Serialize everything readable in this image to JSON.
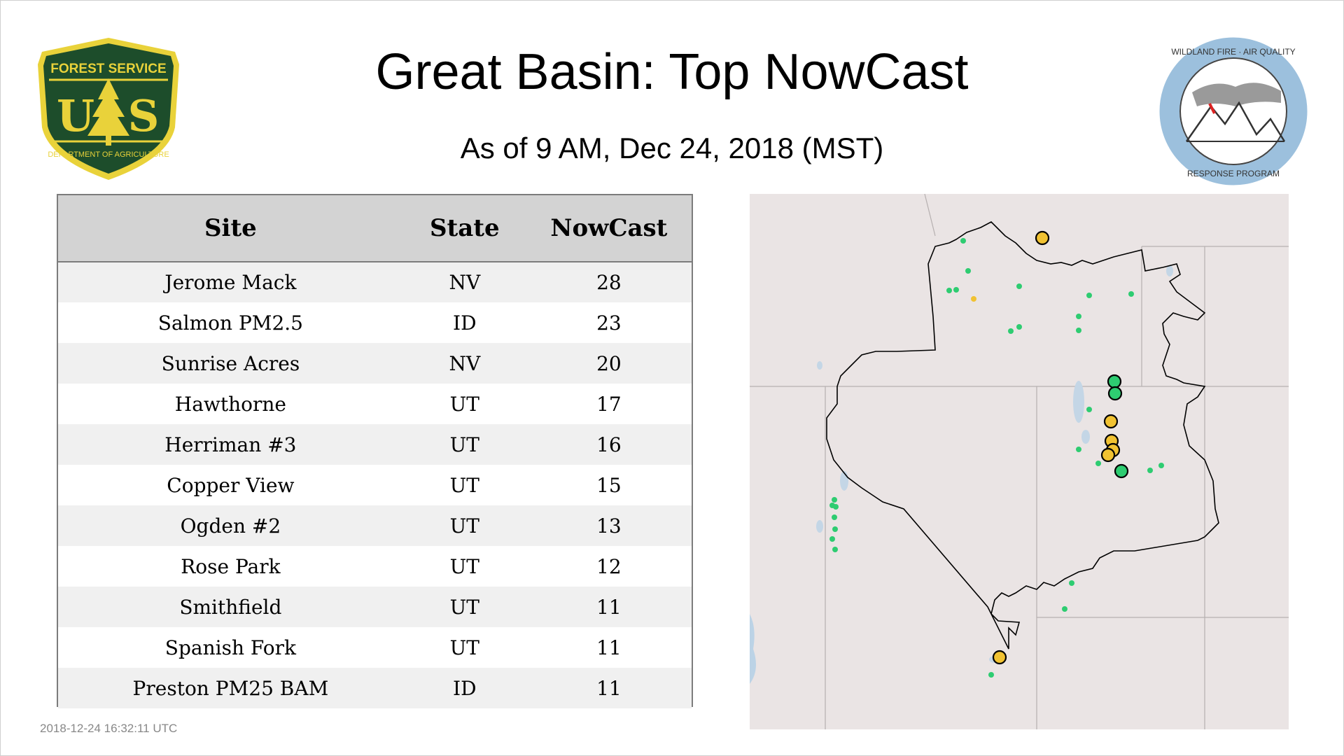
{
  "title": "Great Basin: Top NowCast",
  "subtitle": "As of  9 AM, Dec 24, 2018 (MST)",
  "timestamp": "2018-12-24 16:32:11 UTC",
  "logos": {
    "usfs": {
      "top_text": "FOREST SERVICE",
      "letters_left": "U",
      "letters_right": "S",
      "bottom_text": "DEPARTMENT OF AGRICULTURE",
      "icon": "usfs-shield-icon"
    },
    "wfa": {
      "top_text": "WILDLAND FIRE · AIR QUALITY",
      "bottom_text": "RESPONSE PROGRAM",
      "icon": "mountain-smoke-icon"
    }
  },
  "table": {
    "headers": {
      "site": "Site",
      "state": "State",
      "nowcast": "NowCast"
    },
    "rows": [
      {
        "site": "Jerome Mack",
        "state": "NV",
        "nowcast": "28"
      },
      {
        "site": "Salmon PM2.5",
        "state": "ID",
        "nowcast": "23"
      },
      {
        "site": "Sunrise Acres",
        "state": "NV",
        "nowcast": "20"
      },
      {
        "site": "Hawthorne",
        "state": "UT",
        "nowcast": "17"
      },
      {
        "site": "Herriman #3",
        "state": "UT",
        "nowcast": "16"
      },
      {
        "site": "Copper View",
        "state": "UT",
        "nowcast": "15"
      },
      {
        "site": "Ogden #2",
        "state": "UT",
        "nowcast": "13"
      },
      {
        "site": "Rose Park",
        "state": "UT",
        "nowcast": "12"
      },
      {
        "site": "Smithfield",
        "state": "UT",
        "nowcast": "11"
      },
      {
        "site": "Spanish Fork",
        "state": "UT",
        "nowcast": "11"
      },
      {
        "site": "Preston PM25 BAM",
        "state": "ID",
        "nowcast": "11"
      }
    ]
  },
  "map": {
    "colors": {
      "good": "#2ecc71",
      "moderate": "#f1c232",
      "outline": "#000000",
      "land": "#eae4e4",
      "water": "#bcd3e6"
    }
  }
}
